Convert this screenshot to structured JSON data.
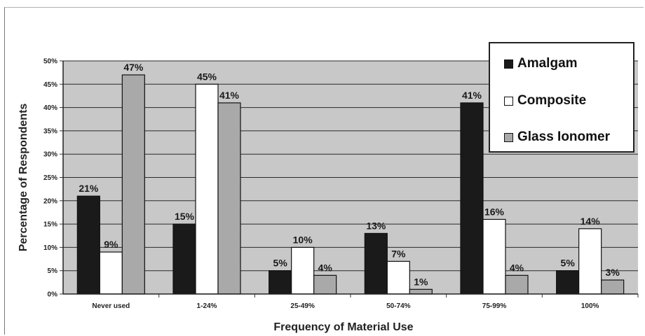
{
  "chart_data": {
    "type": "bar",
    "title": "",
    "xlabel": "Frequency of Material Use",
    "ylabel": "Percentage of Respondents",
    "ylim": [
      0,
      50
    ],
    "yticks": [
      "0%",
      "5%",
      "10%",
      "15%",
      "20%",
      "25%",
      "30%",
      "35%",
      "40%",
      "45%",
      "50%"
    ],
    "categories": [
      "Never used",
      "1-24%",
      "25-49%",
      "50-74%",
      "75-99%",
      "100%"
    ],
    "series": [
      {
        "name": "Amalgam",
        "color": "#1a1a1a",
        "values": [
          21,
          15,
          5,
          13,
          41,
          5
        ],
        "labels": [
          "21%",
          "15%",
          "5%",
          "13%",
          "41%",
          "5%"
        ]
      },
      {
        "name": "Composite",
        "color": "#ffffff",
        "values": [
          9,
          45,
          10,
          7,
          16,
          14
        ],
        "labels": [
          "9%",
          "45%",
          "10%",
          "7%",
          "16%",
          "14%"
        ]
      },
      {
        "name": "Glass Ionomer",
        "color": "#a9a9a9",
        "values": [
          47,
          41,
          4,
          1,
          4,
          3
        ],
        "labels": [
          "47%",
          "41%",
          "4%",
          "1%",
          "4%",
          "3%"
        ]
      }
    ],
    "grid": true,
    "plot_background": "#c8c8c8",
    "legend_position": "top-right"
  }
}
